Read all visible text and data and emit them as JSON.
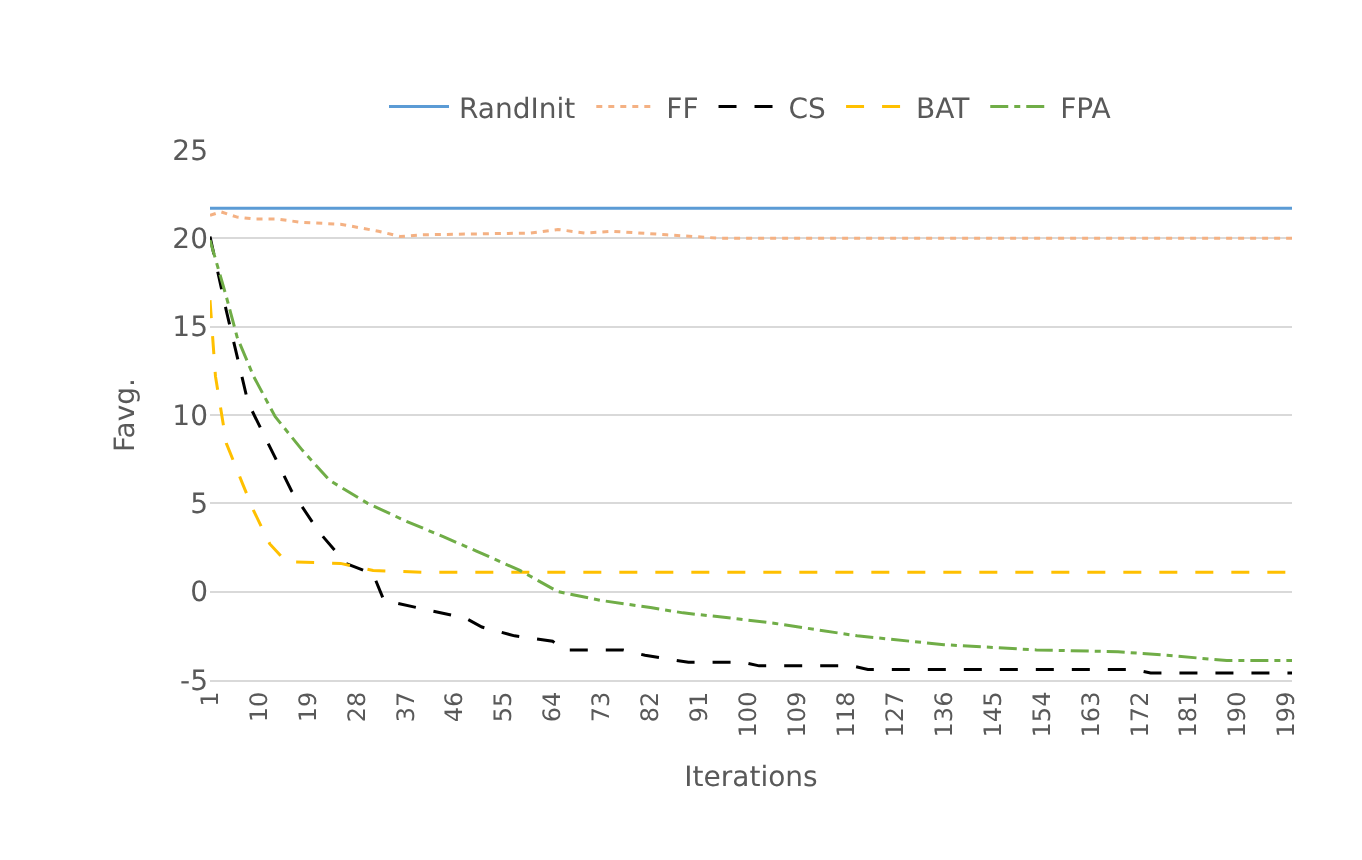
{
  "chart_data": {
    "type": "line",
    "xlabel": "Iterations",
    "ylabel": "Favg.",
    "xlim": [
      1,
      200
    ],
    "xticks": [
      1,
      10,
      19,
      28,
      37,
      46,
      55,
      64,
      73,
      82,
      91,
      100,
      109,
      118,
      127,
      136,
      145,
      154,
      163,
      172,
      181,
      190,
      199
    ],
    "ylim": [
      -5,
      25
    ],
    "yticks": [
      -5,
      0,
      5,
      10,
      15,
      20,
      25
    ],
    "grid": "y",
    "legend": "top",
    "marker": "none",
    "series": [
      {
        "name": "RandInit",
        "color": "#5b9bd5",
        "line_style": "solid",
        "x": [
          1,
          200
        ],
        "values": [
          21.7,
          21.7
        ]
      },
      {
        "name": "FF",
        "color": "#f4b183",
        "line_style": "dotted",
        "x": [
          1,
          3,
          6,
          9,
          13,
          18,
          25,
          32,
          36,
          40,
          60,
          65,
          70,
          75,
          85,
          95,
          200
        ],
        "values": [
          21.3,
          21.5,
          21.2,
          21.1,
          21.1,
          20.9,
          20.8,
          20.4,
          20.1,
          20.2,
          20.3,
          20.5,
          20.3,
          20.4,
          20.2,
          20.0,
          20.0
        ]
      },
      {
        "name": "CS",
        "color": "#000000",
        "line_style": "dashed",
        "x": [
          1,
          4,
          8,
          16,
          21,
          26,
          31,
          33,
          48,
          51,
          57,
          64,
          66,
          77,
          81,
          89,
          99,
          102,
          119,
          122,
          171,
          174,
          200
        ],
        "values": [
          20.1,
          15.9,
          10.7,
          5.7,
          3.4,
          1.6,
          1.0,
          -0.5,
          -1.5,
          -2.0,
          -2.5,
          -2.8,
          -3.3,
          -3.3,
          -3.6,
          -4.0,
          -4.0,
          -4.2,
          -4.2,
          -4.4,
          -4.4,
          -4.6,
          -4.6
        ]
      },
      {
        "name": "BAT",
        "color": "#ffc000",
        "line_style": "dashed",
        "x": [
          1,
          2,
          4,
          7,
          9,
          12,
          15,
          25,
          31,
          40,
          200
        ],
        "values": [
          16.5,
          12.2,
          8.4,
          6.1,
          4.6,
          2.7,
          1.7,
          1.6,
          1.2,
          1.1,
          1.1
        ]
      },
      {
        "name": "FPA",
        "color": "#70ad47",
        "line_style": "dashdot",
        "x": [
          1,
          4,
          6,
          9,
          13,
          18,
          23,
          30,
          37,
          44,
          50,
          58,
          65,
          73,
          82,
          88,
          97,
          105,
          120,
          136,
          153,
          168,
          177,
          188,
          200
        ],
        "values": [
          19.9,
          16.7,
          14.4,
          12.2,
          9.9,
          8.0,
          6.3,
          5.0,
          4.0,
          3.1,
          2.3,
          1.2,
          0.0,
          -0.5,
          -0.9,
          -1.2,
          -1.5,
          -1.8,
          -2.5,
          -3.0,
          -3.3,
          -3.4,
          -3.6,
          -3.9,
          -3.9
        ]
      }
    ]
  }
}
